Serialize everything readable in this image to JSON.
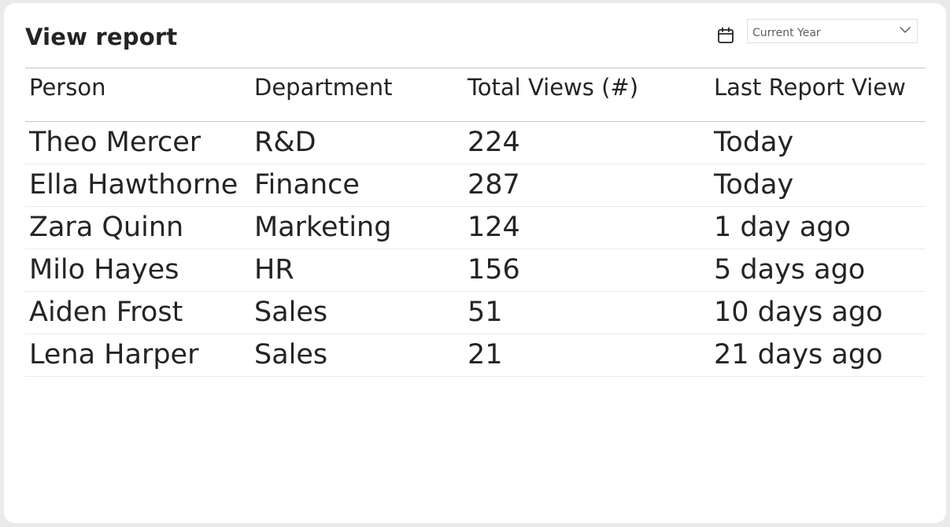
{
  "title": "View report",
  "filter": {
    "icon": "calendar-icon",
    "value": "Current Year",
    "chevron_icon": "chevron-down-icon"
  },
  "table": {
    "columns": [
      "Person",
      "Department",
      "Total Views (#)",
      "Last Report View"
    ],
    "rows": [
      [
        "Theo Mercer",
        "R&D",
        "224",
        "Today"
      ],
      [
        "Ella Hawthorne",
        "Finance",
        "287",
        "Today"
      ],
      [
        "Zara Quinn",
        "Marketing",
        "124",
        "1 day ago"
      ],
      [
        "Milo Hayes",
        "HR",
        "156",
        "5 days ago"
      ],
      [
        "Aiden Frost",
        "Sales",
        "51",
        "10 days ago"
      ],
      [
        "Lena Harper",
        "Sales",
        "21",
        "21 days ago"
      ]
    ]
  }
}
